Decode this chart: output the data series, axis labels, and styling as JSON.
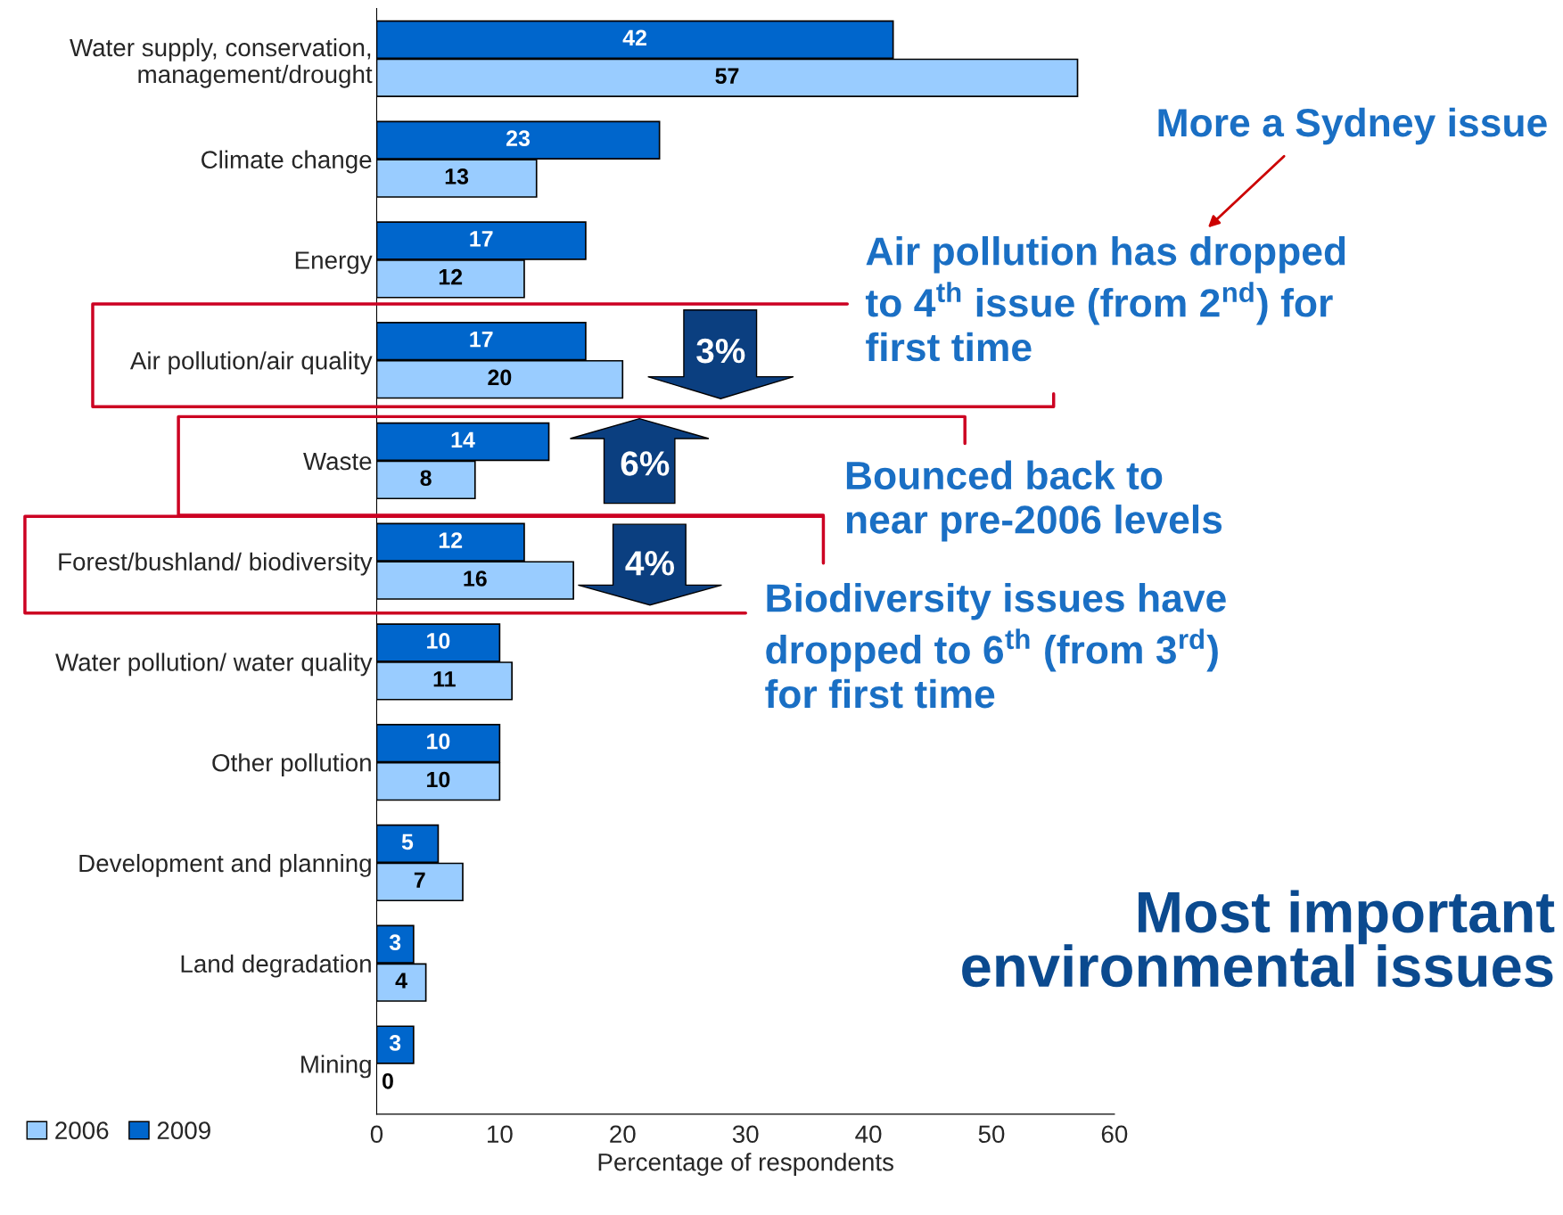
{
  "chart_data": {
    "type": "bar",
    "orientation": "horizontal",
    "title": "Most important\nenvironmental issues",
    "xlabel": "Percentage of respondents",
    "categories": [
      "Water supply, conservation,\nmanagement/drought",
      "Climate change",
      "Energy",
      "Air pollution/air quality",
      "Waste",
      "Forest/bushland/ biodiversity",
      "Water pollution/ water quality",
      "Other pollution",
      "Development and planning",
      "Land degradation",
      "Mining"
    ],
    "series": [
      {
        "name": "2006",
        "color": "#99ccff",
        "values": [
          57,
          13,
          12,
          20,
          8,
          16,
          11,
          10,
          7,
          4,
          0
        ]
      },
      {
        "name": "2009",
        "color": "#0066cc",
        "values": [
          42,
          23,
          17,
          17,
          14,
          12,
          10,
          10,
          5,
          3,
          3
        ]
      }
    ],
    "xlim": [
      0,
      60
    ],
    "xticks": [
      0,
      10,
      20,
      30,
      40,
      50,
      60
    ],
    "data_labels": true,
    "legend": "bottom left",
    "grid": false,
    "annotations": [
      "More a Sydney issue",
      "Air pollution has dropped\nto 4$^{th}$ issue (from 2$^{nd}$) for\nfirst time",
      "Bounced back to\nnear pre-2006 levels",
      "Biodiversity issues have\ndropped to 6$^{th}$ (from 3$^{rd}$)\nfor first time",
      "3%",
      "6%",
      "4%"
    ]
  }
}
